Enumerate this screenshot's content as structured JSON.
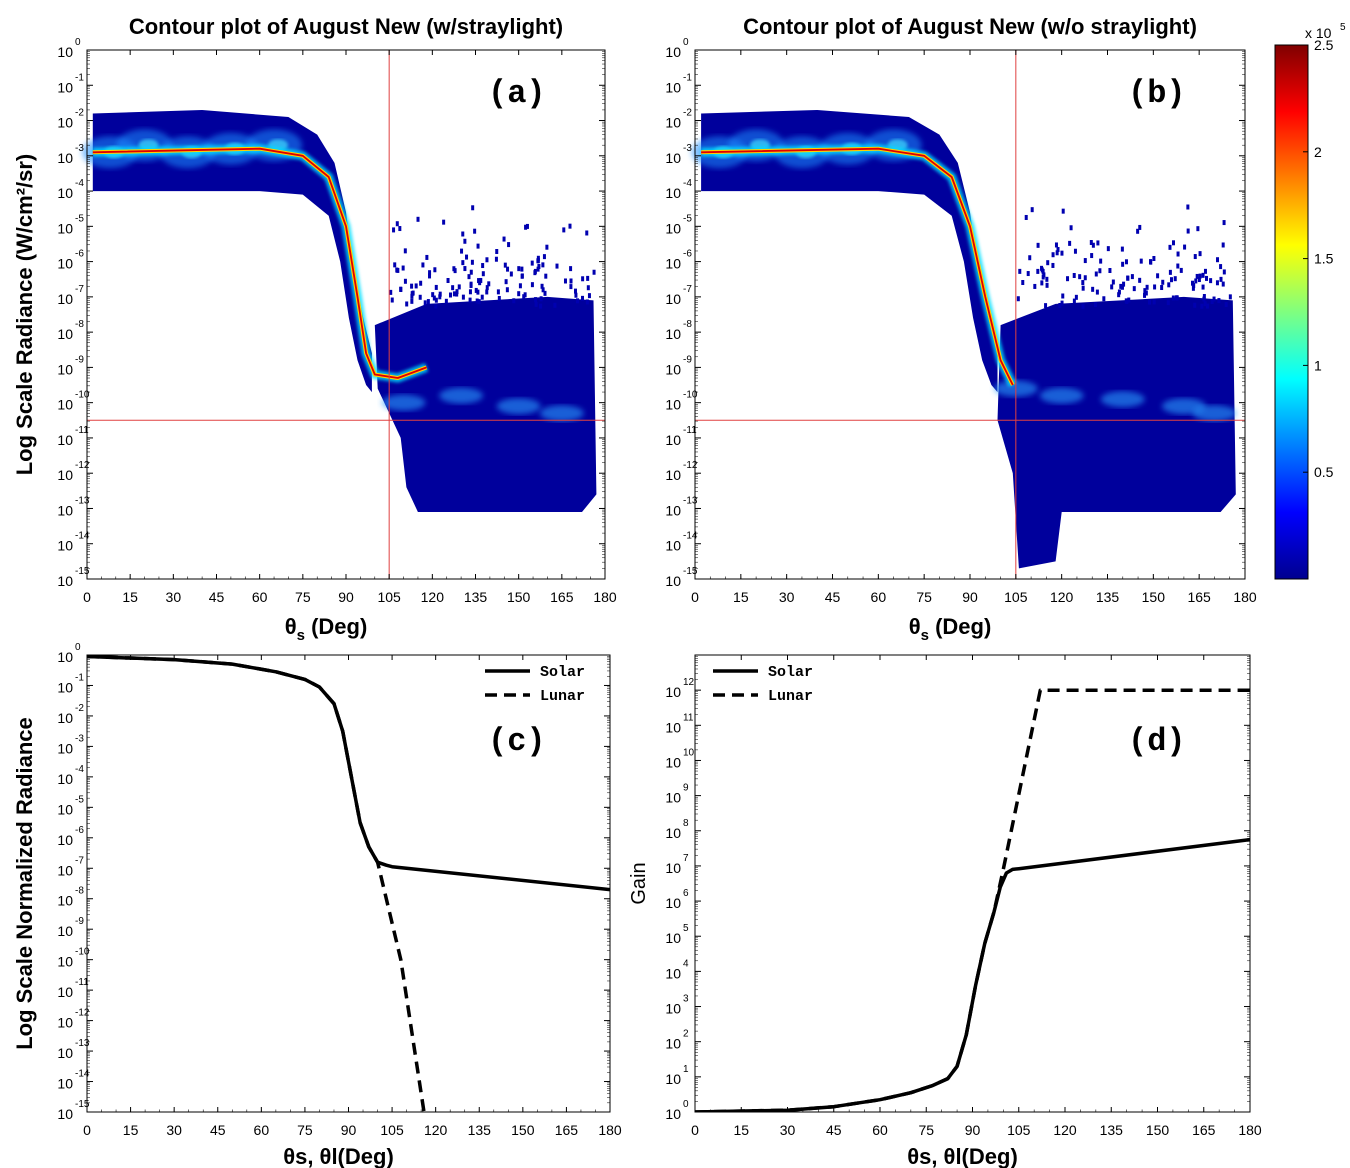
{
  "colorbar": {
    "exponent_label": "x 10",
    "exponent": "5",
    "ticks": [
      {
        "v": 2.5,
        "label": "2.5"
      },
      {
        "v": 2.0,
        "label": "2"
      },
      {
        "v": 1.5,
        "label": "1.5"
      },
      {
        "v": 1.0,
        "label": "1"
      },
      {
        "v": 0.5,
        "label": "0.5"
      }
    ],
    "range": [
      0,
      2.5
    ],
    "colormap": "jet"
  },
  "chart_data": [
    {
      "id": "a",
      "type": "heatmap",
      "title": "Contour plot of August New (w/straylight)",
      "panel_label": "(a)",
      "xlabel_main": "θ",
      "xlabel_sub": "s",
      "xlabel_rest": " (Deg)",
      "ylabel": "Log Scale Radiance (W/cm²/sr)",
      "xlim": [
        0,
        180
      ],
      "ylim_exp": [
        -15,
        0
      ],
      "xticks": [
        0,
        15,
        30,
        45,
        60,
        75,
        90,
        105,
        120,
        135,
        150,
        165,
        180
      ],
      "yticks_exp": [
        0,
        -1,
        -2,
        -3,
        -4,
        -5,
        -6,
        -7,
        -8,
        -9,
        -10,
        -11,
        -12,
        -13,
        -14,
        -15
      ],
      "ref_lines": {
        "x": 105,
        "y_exp": -10.5
      },
      "bright_ridge": [
        [
          2,
          -2.9
        ],
        [
          60,
          -2.8
        ],
        [
          75,
          -3.0
        ],
        [
          84,
          -3.6
        ],
        [
          90,
          -5.0
        ],
        [
          94,
          -7.0
        ],
        [
          97,
          -8.6
        ],
        [
          100,
          -9.2
        ],
        [
          108,
          -9.3
        ],
        [
          118,
          -9.0
        ]
      ],
      "secondary_band": [
        [
          110,
          -10.0
        ],
        [
          130,
          -9.8
        ],
        [
          150,
          -10.1
        ],
        [
          165,
          -10.3
        ]
      ],
      "colorbar_max": 250000
    },
    {
      "id": "b",
      "type": "heatmap",
      "title": "Contour plot of August New (w/o straylight)",
      "panel_label": "(b)",
      "xlabel_main": "θ",
      "xlabel_sub": "s",
      "xlabel_rest": " (Deg)",
      "xlim": [
        0,
        180
      ],
      "ylim_exp": [
        -15,
        0
      ],
      "xticks": [
        0,
        15,
        30,
        45,
        60,
        75,
        90,
        105,
        120,
        135,
        150,
        165,
        180
      ],
      "yticks_exp": [
        0,
        -1,
        -2,
        -3,
        -4,
        -5,
        -6,
        -7,
        -8,
        -9,
        -10,
        -11,
        -12,
        -13,
        -14,
        -15
      ],
      "ref_lines": {
        "x": 105,
        "y_exp": -10.5
      },
      "bright_ridge": [
        [
          2,
          -2.9
        ],
        [
          60,
          -2.8
        ],
        [
          75,
          -3.0
        ],
        [
          84,
          -3.6
        ],
        [
          90,
          -5.0
        ],
        [
          95,
          -7.0
        ],
        [
          100,
          -8.8
        ],
        [
          104,
          -9.5
        ]
      ],
      "secondary_band": [
        [
          105,
          -9.6
        ],
        [
          120,
          -9.8
        ],
        [
          140,
          -9.9
        ],
        [
          160,
          -10.1
        ],
        [
          170,
          -10.3
        ]
      ],
      "colorbar_max": 250000
    },
    {
      "id": "c",
      "type": "line",
      "panel_label": "(c)",
      "xlabel": "θs, θl(Deg)",
      "ylabel": "Log Scale Normalized Radiance",
      "xlim": [
        0,
        180
      ],
      "ylim_exp": [
        -15,
        0
      ],
      "yscale": "log",
      "xticks": [
        0,
        15,
        30,
        45,
        60,
        75,
        90,
        105,
        120,
        135,
        150,
        165,
        180
      ],
      "xtick_labels": [
        "0",
        "15",
        "30",
        "45",
        "60",
        "75",
        "90",
        "105",
        "120",
        "135",
        "150",
        "165",
        "180"
      ],
      "yticks_exp": [
        0,
        -1,
        -2,
        -3,
        -4,
        -5,
        -6,
        -7,
        -8,
        -9,
        -10,
        -11,
        -12,
        -13,
        -14,
        -15
      ],
      "legend": {
        "position": "top-right"
      },
      "series": [
        {
          "name": "Solar",
          "style": "solid",
          "points_log10": [
            [
              0,
              -0.05
            ],
            [
              30,
              -0.15
            ],
            [
              50,
              -0.3
            ],
            [
              65,
              -0.55
            ],
            [
              75,
              -0.8
            ],
            [
              80,
              -1.05
            ],
            [
              85,
              -1.6
            ],
            [
              88,
              -2.5
            ],
            [
              91,
              -4.0
            ],
            [
              94,
              -5.5
            ],
            [
              97,
              -6.3
            ],
            [
              100,
              -6.8
            ],
            [
              103,
              -6.9
            ],
            [
              105,
              -6.95
            ],
            [
              180,
              -7.7
            ]
          ]
        },
        {
          "name": "Lunar",
          "style": "dashed",
          "points_log10": [
            [
              0,
              -0.05
            ],
            [
              30,
              -0.15
            ],
            [
              50,
              -0.3
            ],
            [
              65,
              -0.55
            ],
            [
              75,
              -0.8
            ],
            [
              80,
              -1.05
            ],
            [
              85,
              -1.6
            ],
            [
              88,
              -2.5
            ],
            [
              91,
              -4.0
            ],
            [
              94,
              -5.5
            ],
            [
              97,
              -6.3
            ],
            [
              100,
              -6.8
            ],
            [
              108,
              -10.0
            ],
            [
              116,
              -15.0
            ]
          ]
        }
      ]
    },
    {
      "id": "d",
      "type": "line",
      "panel_label": "(d)",
      "xlabel": "θs, θl(Deg)",
      "ylabel": "Gain",
      "xlim": [
        0,
        180
      ],
      "ylim_exp": [
        0,
        13
      ],
      "yscale": "log",
      "xticks": [
        0,
        15,
        30,
        45,
        60,
        75,
        90,
        105,
        120,
        135,
        150,
        165,
        180
      ],
      "xtick_labels": [
        "0",
        "15",
        "30",
        "45",
        "60",
        "75",
        "90",
        "105",
        "120",
        "135",
        "150",
        "165",
        "180"
      ],
      "yticks_exp": [
        0,
        1,
        2,
        3,
        4,
        5,
        6,
        7,
        8,
        9,
        10,
        11,
        12
      ],
      "legend": {
        "position": "top-left"
      },
      "series": [
        {
          "name": "Solar",
          "style": "solid",
          "points_log10": [
            [
              0,
              0
            ],
            [
              30,
              0.05
            ],
            [
              45,
              0.15
            ],
            [
              60,
              0.35
            ],
            [
              70,
              0.55
            ],
            [
              77,
              0.75
            ],
            [
              82,
              0.95
            ],
            [
              85,
              1.3
            ],
            [
              88,
              2.2
            ],
            [
              91,
              3.6
            ],
            [
              94,
              4.8
            ],
            [
              97,
              5.7
            ],
            [
              99,
              6.4
            ],
            [
              101,
              6.8
            ],
            [
              103,
              6.9
            ],
            [
              105,
              6.92
            ],
            [
              180,
              7.75
            ]
          ]
        },
        {
          "name": "Lunar",
          "style": "dashed",
          "points_log10": [
            [
              0,
              0
            ],
            [
              30,
              0.05
            ],
            [
              45,
              0.15
            ],
            [
              60,
              0.35
            ],
            [
              70,
              0.55
            ],
            [
              77,
              0.75
            ],
            [
              82,
              0.95
            ],
            [
              85,
              1.3
            ],
            [
              88,
              2.2
            ],
            [
              91,
              3.6
            ],
            [
              94,
              4.8
            ],
            [
              97,
              5.7
            ],
            [
              100,
              6.9
            ],
            [
              112,
              12.0
            ],
            [
              180,
              12.0
            ]
          ]
        }
      ]
    }
  ]
}
